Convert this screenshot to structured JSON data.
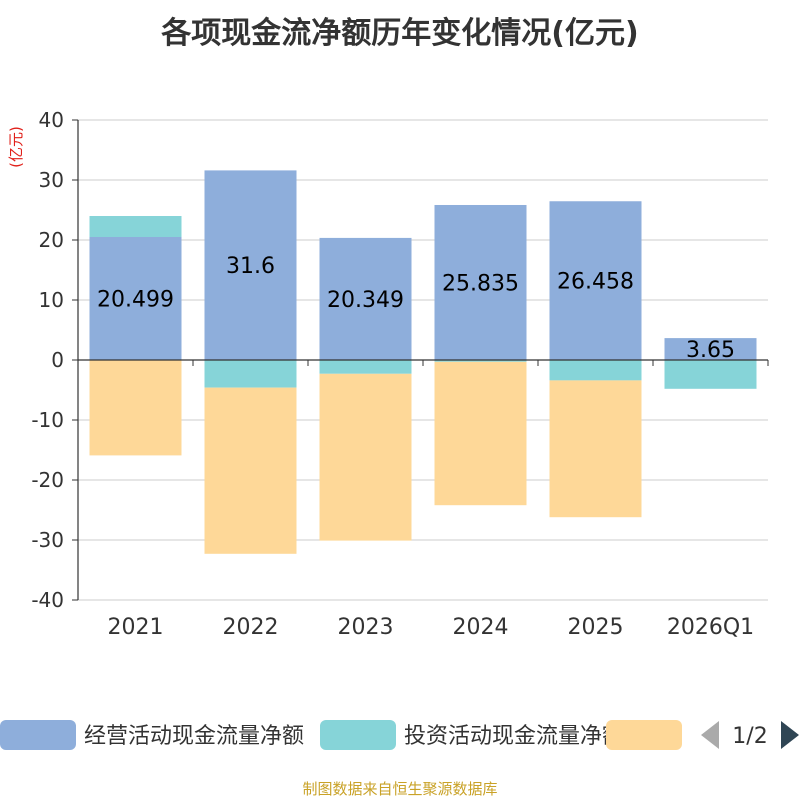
{
  "chart_data": {
    "type": "bar",
    "stacked": true,
    "title": "各项现金流净额历年变化情况(亿元)",
    "ylabel": "(亿元)",
    "xlabel": "",
    "ylim": [
      -40,
      40
    ],
    "yticks": [
      40,
      30,
      20,
      10,
      0,
      -10,
      -20,
      -30,
      -40
    ],
    "categories": [
      "2021",
      "2022",
      "2023",
      "2024",
      "2025",
      "2026Q1"
    ],
    "series": [
      {
        "name": "经营活动现金流量净额",
        "color": "#8eaedb",
        "values": [
          20.499,
          31.6,
          20.349,
          25.835,
          26.458,
          3.65
        ],
        "labels": [
          "20.499",
          "31.6",
          "20.349",
          "25.835",
          "26.458",
          "3.65"
        ]
      },
      {
        "name": "投资活动现金流量净额",
        "color": "#86d4d8",
        "values": [
          3.5,
          -4.6,
          -2.3,
          -0.3,
          -3.4,
          -4.8
        ]
      },
      {
        "name": "",
        "color": "#fed898",
        "values": [
          -15.9,
          -27.7,
          -27.8,
          -23.9,
          -22.8,
          0
        ]
      }
    ],
    "legend": {
      "position": "bottom",
      "page": "1/2"
    }
  },
  "footer": "制图数据来自恒生聚源数据库"
}
